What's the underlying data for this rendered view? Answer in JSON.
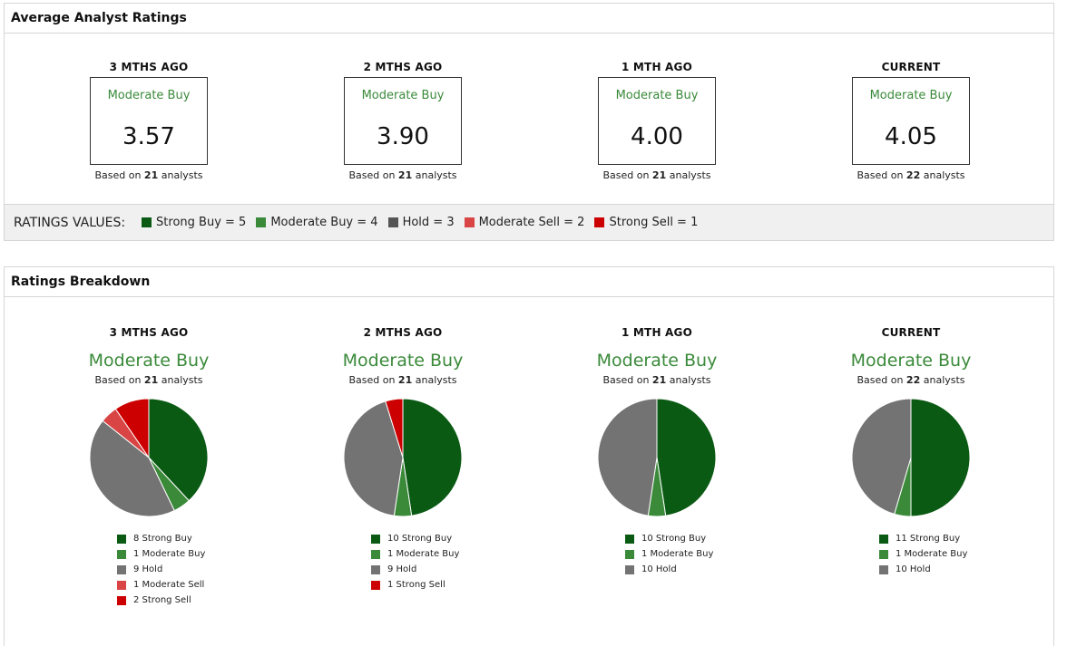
{
  "avg_panel": {
    "title": "Average Analyst Ratings",
    "periods": [
      {
        "label": "3 MTHS AGO",
        "rating": "Moderate Buy",
        "score": "3.57",
        "based_prefix": "Based on",
        "analysts": "21",
        "based_suffix": "analysts"
      },
      {
        "label": "2 MTHS AGO",
        "rating": "Moderate Buy",
        "score": "3.90",
        "based_prefix": "Based on",
        "analysts": "21",
        "based_suffix": "analysts"
      },
      {
        "label": "1 MTH AGO",
        "rating": "Moderate Buy",
        "score": "4.00",
        "based_prefix": "Based on",
        "analysts": "21",
        "based_suffix": "analysts"
      },
      {
        "label": "CURRENT",
        "rating": "Moderate Buy",
        "score": "4.05",
        "based_prefix": "Based on",
        "analysts": "22",
        "based_suffix": "analysts"
      }
    ],
    "ratings_values": {
      "title": "RATINGS VALUES:",
      "items": [
        {
          "label": "Strong Buy = 5",
          "color": "#0a5a14"
        },
        {
          "label": "Moderate Buy = 4",
          "color": "#3a8a3a"
        },
        {
          "label": "Hold = 3",
          "color": "#555555"
        },
        {
          "label": "Moderate Sell = 2",
          "color": "#d94444"
        },
        {
          "label": "Strong Sell = 1",
          "color": "#cc0000"
        }
      ]
    }
  },
  "breakdown_panel": {
    "title": "Ratings Breakdown"
  },
  "colors": {
    "strong_buy": "#0a5a14",
    "moderate_buy": "#3a8a3a",
    "hold": "#737373",
    "moderate_sell": "#d94444",
    "strong_sell": "#cc0000"
  },
  "chart_data": [
    {
      "type": "pie",
      "title": "3 MTHS AGO",
      "subtitle": "Moderate Buy",
      "based_prefix": "Based on",
      "analysts": "21",
      "based_suffix": "analysts",
      "slices": [
        {
          "label": "8 Strong Buy",
          "value": 8,
          "color": "#0a5a14"
        },
        {
          "label": "1 Moderate Buy",
          "value": 1,
          "color": "#3a8a3a"
        },
        {
          "label": "9 Hold",
          "value": 9,
          "color": "#737373"
        },
        {
          "label": "1 Moderate Sell",
          "value": 1,
          "color": "#d94444"
        },
        {
          "label": "2 Strong Sell",
          "value": 2,
          "color": "#cc0000"
        }
      ]
    },
    {
      "type": "pie",
      "title": "2 MTHS AGO",
      "subtitle": "Moderate Buy",
      "based_prefix": "Based on",
      "analysts": "21",
      "based_suffix": "analysts",
      "slices": [
        {
          "label": "10 Strong Buy",
          "value": 10,
          "color": "#0a5a14"
        },
        {
          "label": "1 Moderate Buy",
          "value": 1,
          "color": "#3a8a3a"
        },
        {
          "label": "9 Hold",
          "value": 9,
          "color": "#737373"
        },
        {
          "label": "1 Strong Sell",
          "value": 1,
          "color": "#cc0000"
        }
      ]
    },
    {
      "type": "pie",
      "title": "1 MTH AGO",
      "subtitle": "Moderate Buy",
      "based_prefix": "Based on",
      "analysts": "21",
      "based_suffix": "analysts",
      "slices": [
        {
          "label": "10 Strong Buy",
          "value": 10,
          "color": "#0a5a14"
        },
        {
          "label": "1 Moderate Buy",
          "value": 1,
          "color": "#3a8a3a"
        },
        {
          "label": "10 Hold",
          "value": 10,
          "color": "#737373"
        }
      ]
    },
    {
      "type": "pie",
      "title": "CURRENT",
      "subtitle": "Moderate Buy",
      "based_prefix": "Based on",
      "analysts": "22",
      "based_suffix": "analysts",
      "slices": [
        {
          "label": "11 Strong Buy",
          "value": 11,
          "color": "#0a5a14"
        },
        {
          "label": "1 Moderate Buy",
          "value": 1,
          "color": "#3a8a3a"
        },
        {
          "label": "10 Hold",
          "value": 10,
          "color": "#737373"
        }
      ]
    }
  ]
}
